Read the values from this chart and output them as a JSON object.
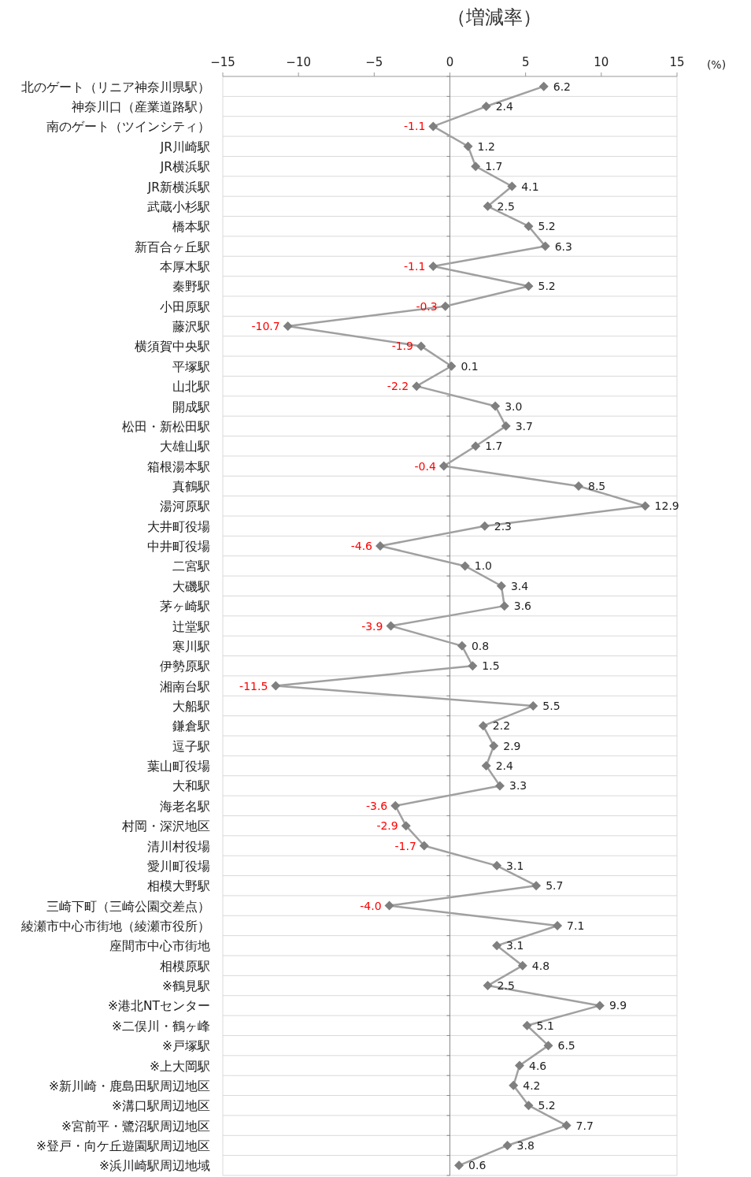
{
  "chart_data": {
    "type": "line",
    "orientation": "horizontal",
    "title": "（増減率）",
    "xlabel": "(%)",
    "categories": [
      "北のゲート（リニア神奈川県駅）",
      "神奈川口（産業道路駅）",
      "南のゲート（ツインシティ）",
      "JR川崎駅",
      "JR横浜駅",
      "JR新横浜駅",
      "武蔵小杉駅",
      "橋本駅",
      "新百合ヶ丘駅",
      "本厚木駅",
      "秦野駅",
      "小田原駅",
      "藤沢駅",
      "横須賀中央駅",
      "平塚駅",
      "山北駅",
      "開成駅",
      "松田・新松田駅",
      "大雄山駅",
      "箱根湯本駅",
      "真鶴駅",
      "湯河原駅",
      "大井町役場",
      "中井町役場",
      "二宮駅",
      "大磯駅",
      "茅ヶ崎駅",
      "辻堂駅",
      "寒川駅",
      "伊勢原駅",
      "湘南台駅",
      "大船駅",
      "鎌倉駅",
      "逗子駅",
      "葉山町役場",
      "大和駅",
      "海老名駅",
      "村岡・深沢地区",
      "清川村役場",
      "愛川町役場",
      "相模大野駅",
      "三崎下町（三崎公園交差点）",
      "綾瀬市中心市街地（綾瀬市役所）",
      "座間市中心市街地",
      "相模原駅",
      "※鶴見駅",
      "※港北NTセンター",
      "※二俣川・鶴ヶ峰",
      "※戸塚駅",
      "※上大岡駅",
      "※新川崎・鹿島田駅周辺地区",
      "※溝口駅周辺地区",
      "※宮前平・鷺沼駅周辺地区",
      "※登戸・向ケ丘遊園駅周辺地区",
      "※浜川崎駅周辺地域"
    ],
    "series": [
      {
        "color": "#a0a0a0",
        "values": [
          6.2,
          2.4,
          -1.1,
          1.2,
          1.7,
          4.1,
          2.5,
          5.2,
          6.3,
          -1.1,
          5.2,
          -0.3,
          -10.7,
          -1.9,
          0.1,
          -2.2,
          3.0,
          3.7,
          1.7,
          -0.4,
          8.5,
          12.9,
          2.3,
          -4.6,
          1.0,
          3.4,
          3.6,
          -3.9,
          0.8,
          1.5,
          -11.5,
          5.5,
          2.2,
          2.9,
          2.4,
          3.3,
          -3.6,
          -2.9,
          -1.7,
          3.1,
          5.7,
          -4.0,
          7.1,
          3.1,
          4.8,
          2.5,
          9.9,
          5.1,
          6.5,
          4.6,
          4.2,
          5.2,
          7.7,
          3.8,
          0.6
        ],
        "value_labels": [
          "6.2",
          "2.4",
          "-1.1",
          "1.2",
          "1.7",
          "4.1",
          "2.5",
          "5.2",
          "6.3",
          "-1.1",
          "5.2",
          "-0.3",
          "-10.7",
          "-1.9",
          "0.1",
          "-2.2",
          "3.0",
          "3.7",
          "1.7",
          "-0.4",
          "8.5",
          "12.9",
          "2.3",
          "-4.6",
          "1.0",
          "3.4",
          "3.6",
          "-3.9",
          "0.8",
          "1.5",
          "-11.5",
          "5.5",
          "2.2",
          "2.9",
          "2.4",
          "3.3",
          "-3.6",
          "-2.9",
          "-1.7",
          "3.1",
          "5.7",
          "-4.0",
          "7.1",
          "3.1",
          "4.8",
          "2.5",
          "9.9",
          "5.1",
          "6.5",
          "4.6",
          "4.2",
          "5.2",
          "7.7",
          "3.8",
          "0.6"
        ]
      }
    ],
    "xlim": [
      -15,
      15
    ],
    "xticks": [
      {
        "value": -15,
        "label": "−15"
      },
      {
        "value": -10,
        "label": "−10"
      },
      {
        "value": -5,
        "label": "−5"
      },
      0,
      5,
      10,
      15
    ],
    "grid": "y",
    "marker": "diamond",
    "line_style": "solid"
  }
}
